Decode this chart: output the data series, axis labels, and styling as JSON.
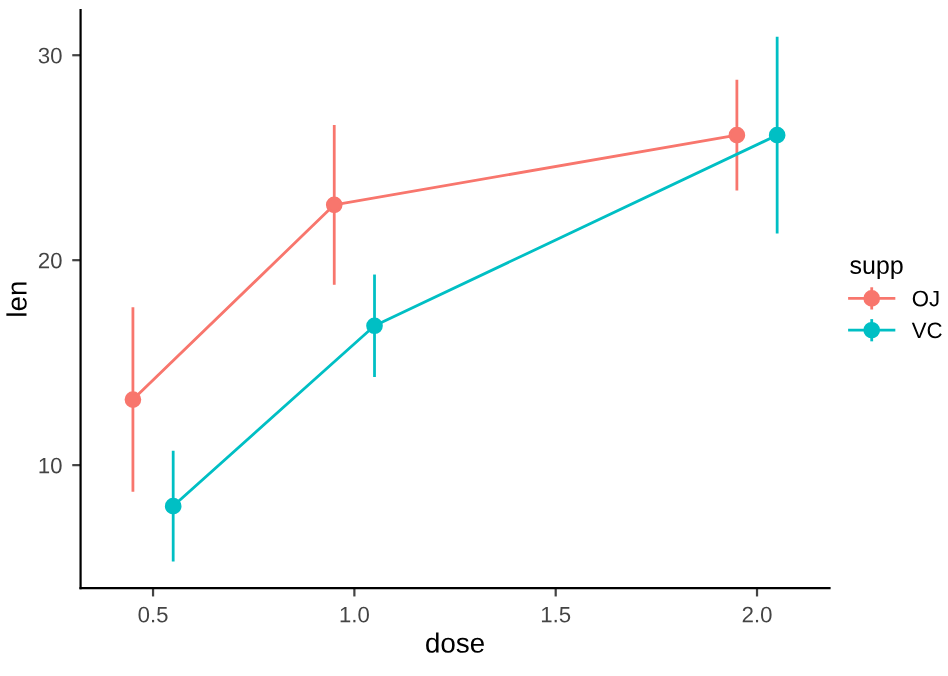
{
  "chart_data": {
    "type": "line",
    "xlabel": "dose",
    "ylabel": "len",
    "legend_title": "supp",
    "series": [
      {
        "name": "OJ",
        "color": "#f8766d",
        "x": [
          0.45,
          0.95,
          1.95
        ],
        "values": [
          13.2,
          22.7,
          26.1
        ],
        "errors": [
          4.5,
          3.9,
          2.7
        ]
      },
      {
        "name": "VC",
        "color": "#00bfc4",
        "x": [
          0.55,
          1.05,
          2.05
        ],
        "values": [
          8.0,
          16.8,
          26.1
        ],
        "errors": [
          2.7,
          2.5,
          4.8
        ]
      }
    ],
    "xlim": [
      0.32,
      2.18
    ],
    "ylim": [
      4.0,
      32.2
    ],
    "xticks": [
      {
        "value": 0.5,
        "label": "0.5"
      },
      {
        "value": 1.0,
        "label": "1.0"
      },
      {
        "value": 1.5,
        "label": "1.5"
      },
      {
        "value": 2.0,
        "label": "2.0"
      }
    ],
    "yticks": [
      10,
      20,
      30
    ],
    "marker": "circle",
    "line_style": "solid",
    "legend": "right",
    "grid": false
  }
}
